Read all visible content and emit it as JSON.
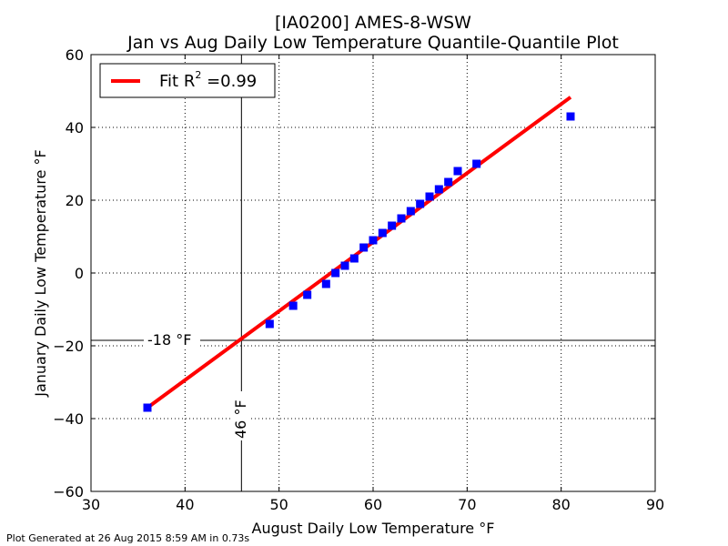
{
  "chart_data": {
    "type": "scatter",
    "title_line1": "[IA0200] AMES-8-WSW",
    "title_line2": "Jan vs Aug Daily Low Temperature Quantile-Quantile Plot",
    "xlabel": "August Daily Low Temperature $^\\circ$F",
    "xlabel_main": "August Daily Low Temperature ",
    "xlabel_unit": "°F",
    "ylabel_main": "January Daily Low Temperature ",
    "ylabel_unit": "°F",
    "xlim": [
      30,
      90
    ],
    "ylim": [
      -60,
      60
    ],
    "xticks": [
      30,
      40,
      50,
      60,
      70,
      80,
      90
    ],
    "yticks": [
      -60,
      -40,
      -20,
      0,
      20,
      40,
      60
    ],
    "xtick_labels": [
      "30",
      "40",
      "50",
      "60",
      "70",
      "80",
      "90"
    ],
    "ytick_labels": [
      "−60",
      "−40",
      "−20",
      "0",
      "20",
      "40",
      "60"
    ],
    "grid": true,
    "legend_position": "top-left",
    "points": [
      {
        "x": 36,
        "y": -37
      },
      {
        "x": 49,
        "y": -14
      },
      {
        "x": 51.5,
        "y": -9
      },
      {
        "x": 53,
        "y": -6
      },
      {
        "x": 55,
        "y": -3
      },
      {
        "x": 56,
        "y": 0
      },
      {
        "x": 57,
        "y": 2
      },
      {
        "x": 58,
        "y": 4
      },
      {
        "x": 59,
        "y": 7
      },
      {
        "x": 60,
        "y": 9
      },
      {
        "x": 61,
        "y": 11
      },
      {
        "x": 62,
        "y": 13
      },
      {
        "x": 63,
        "y": 15
      },
      {
        "x": 64,
        "y": 17
      },
      {
        "x": 65,
        "y": 19
      },
      {
        "x": 66,
        "y": 21
      },
      {
        "x": 67,
        "y": 23
      },
      {
        "x": 68,
        "y": 25
      },
      {
        "x": 69,
        "y": 28
      },
      {
        "x": 71,
        "y": 30
      },
      {
        "x": 81,
        "y": 43
      }
    ],
    "fit_line": {
      "x": [
        36,
        81
      ],
      "y": [
        -37,
        48.3
      ],
      "legend_main": "Fit R",
      "legend_sup": "2",
      "legend_value": " =0.99",
      "color": "#ff0000"
    },
    "point_color": "#0000ff",
    "vertical_ref": {
      "x": 46,
      "label": "46 °F"
    },
    "horizontal_ref": {
      "y": -18.5,
      "label": "-18 °F"
    }
  },
  "footer": "Plot Generated at 26 Aug 2015 8:59 AM in 0.73s"
}
